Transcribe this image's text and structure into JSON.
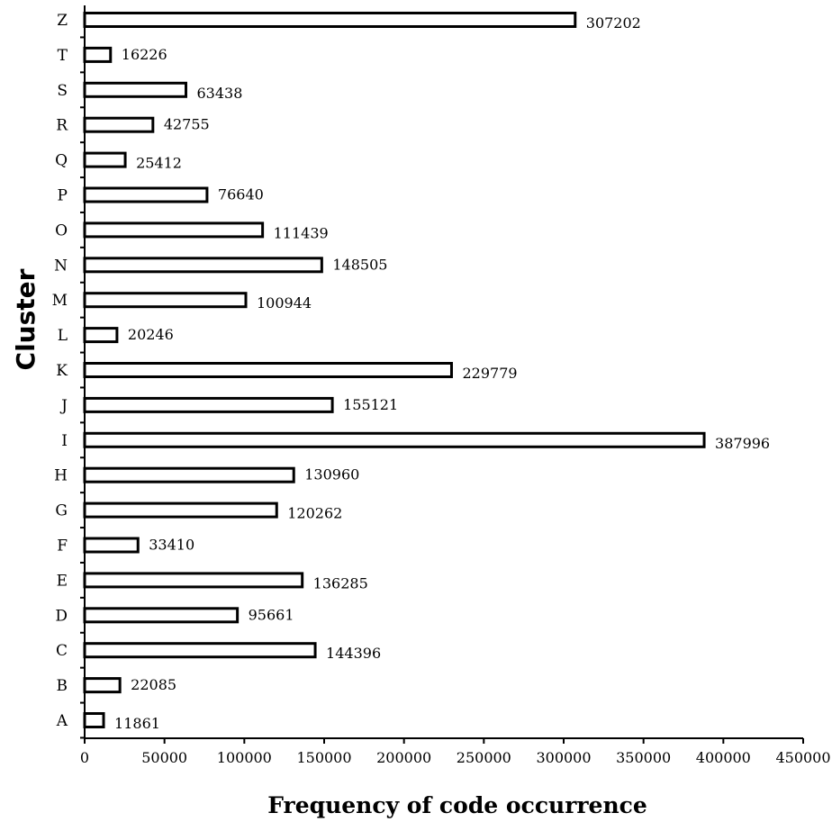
{
  "chart_data": {
    "type": "bar",
    "orientation": "horizontal",
    "xlabel": "Frequency of code occurrence",
    "ylabel": "Cluster",
    "categories": [
      "A",
      "B",
      "C",
      "D",
      "E",
      "F",
      "G",
      "H",
      "I",
      "J",
      "K",
      "L",
      "M",
      "N",
      "O",
      "P",
      "Q",
      "R",
      "S",
      "T",
      "Z"
    ],
    "values": [
      11861,
      22085,
      144396,
      95661,
      136285,
      33410,
      120262,
      130960,
      387996,
      155121,
      229779,
      20246,
      100944,
      148505,
      111439,
      76640,
      25412,
      42755,
      63438,
      16226,
      307202
    ],
    "value_labels": [
      "11861",
      "22085",
      "144396",
      "95661",
      "136285",
      "33410",
      "120262",
      "130960",
      "387996",
      "155121",
      "229779",
      "20246",
      "100944",
      "148505",
      "111439",
      "76640",
      "25412",
      "42755",
      "63438",
      "16226",
      "307202"
    ],
    "xlim": [
      0,
      450000
    ],
    "x_ticks": [
      0,
      50000,
      100000,
      150000,
      200000,
      250000,
      300000,
      350000,
      400000,
      450000
    ],
    "x_tick_labels": [
      "0",
      "50000",
      "100000",
      "150000",
      "200000",
      "250000",
      "300000",
      "350000",
      "400000",
      "450000"
    ],
    "grid": false,
    "legend": "none",
    "bar_fill": "#ffffff",
    "bar_stroke": "#000000"
  }
}
